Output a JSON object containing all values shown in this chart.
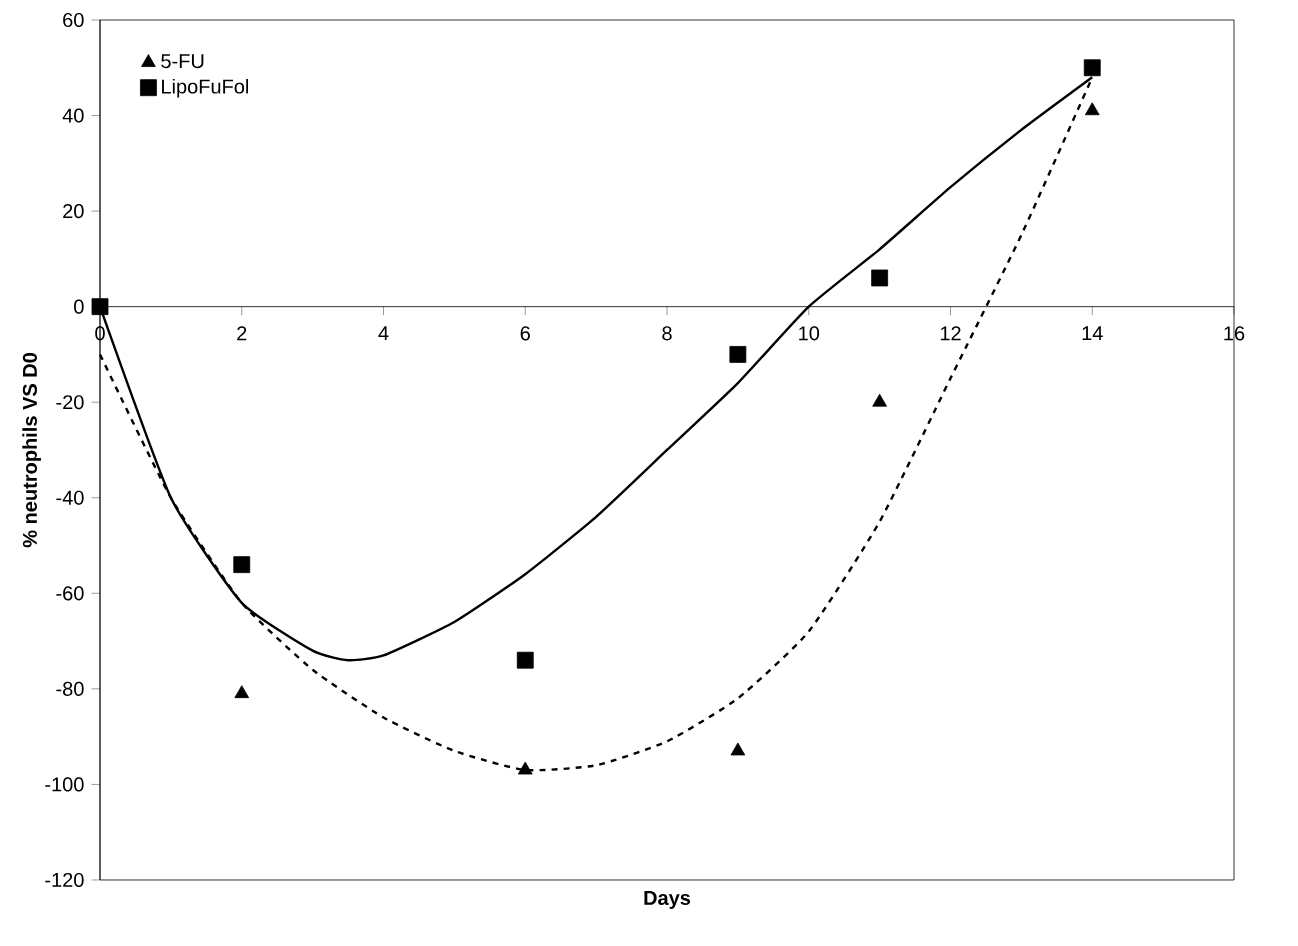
{
  "chart_data": {
    "type": "scatter",
    "xlabel": "Days",
    "ylabel": "% neutrophils VS D0",
    "xlim": [
      0,
      16
    ],
    "xticks": [
      0,
      2,
      4,
      6,
      8,
      10,
      12,
      14,
      16
    ],
    "ylim": [
      -120,
      60
    ],
    "yticks": [
      -120,
      -100,
      -80,
      -60,
      -40,
      -20,
      0,
      20,
      40,
      60
    ],
    "legend": "top left",
    "grid": false,
    "series": [
      {
        "name": "5-FU",
        "marker": "triangle",
        "color": "#000000",
        "x": [
          2,
          6,
          9,
          11,
          14
        ],
        "values": [
          -81,
          -97,
          -93,
          -20,
          41
        ]
      },
      {
        "name": "LipoFuFol",
        "marker": "square",
        "color": "#000000",
        "x": [
          0,
          2,
          6,
          9,
          11,
          14
        ],
        "values": [
          0,
          -54,
          -74,
          -10,
          6,
          50
        ]
      },
      {
        "type": "line",
        "line_style": "solid",
        "marker": "none",
        "color": "#000000",
        "x": [
          0,
          1,
          2,
          3,
          3.5,
          4,
          5,
          6,
          7,
          8,
          9,
          10,
          11,
          12,
          13,
          14
        ],
        "values": [
          0,
          -40,
          -62,
          -72,
          -74,
          -73,
          -66,
          -56,
          -44,
          -30,
          -16,
          0,
          12,
          25,
          37,
          48
        ]
      },
      {
        "type": "line",
        "line_style": "dashed",
        "marker": "none",
        "color": "#000000",
        "x": [
          0,
          1,
          2,
          3,
          4,
          5,
          6,
          7,
          8,
          9,
          10,
          11,
          12,
          13,
          14
        ],
        "values": [
          -10,
          -40,
          -62,
          -76,
          -86,
          -93,
          -97,
          -96,
          -91,
          -82,
          -68,
          -45,
          -15,
          15,
          48
        ]
      }
    ]
  }
}
